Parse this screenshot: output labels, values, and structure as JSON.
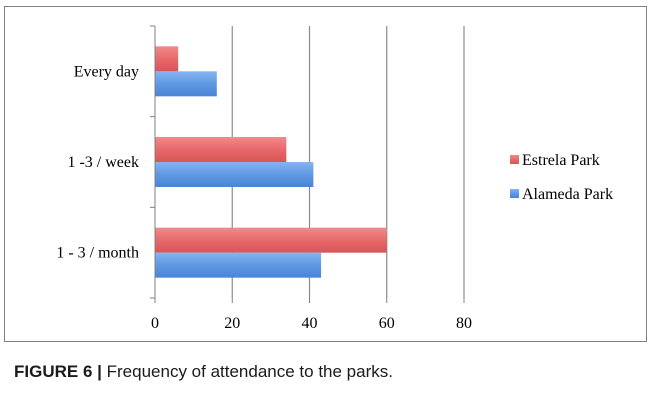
{
  "chart_data": {
    "type": "bar",
    "orientation": "horizontal",
    "categories": [
      "Every day",
      "1 -3 / week",
      "1 - 3 / month"
    ],
    "series": [
      {
        "name": "Estrela Park",
        "values": [
          6,
          34,
          60
        ],
        "color": "#e8696b"
      },
      {
        "name": "Alameda Park",
        "values": [
          16,
          41,
          43
        ],
        "color": "#5b94e0"
      }
    ],
    "xlim": [
      0,
      80
    ],
    "xticks": [
      "0",
      "20",
      "40",
      "60",
      "80"
    ],
    "grid": true,
    "legend": "right"
  },
  "caption": {
    "label": "FIGURE 6 |",
    "text": "Frequency of attendance to the parks."
  }
}
